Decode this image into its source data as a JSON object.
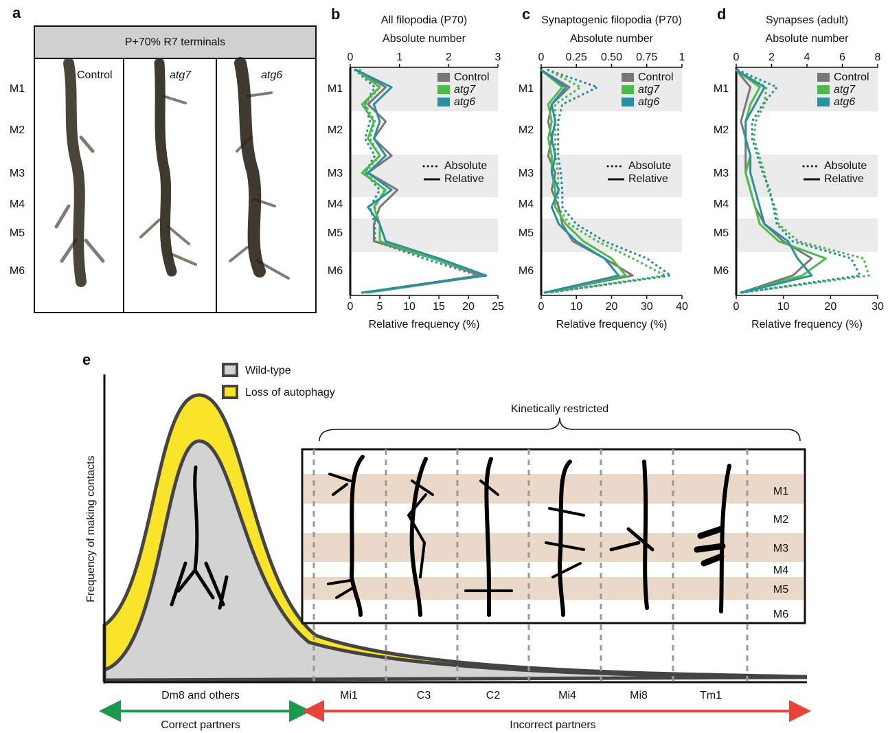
{
  "panel_a": {
    "letter": "a",
    "header": "P+70% R7 terminals",
    "columns": [
      "Control",
      "atg7",
      "atg6"
    ],
    "layers": [
      "M1",
      "M2",
      "M3",
      "M4",
      "M5",
      "M6"
    ]
  },
  "chart_data": [
    {
      "type": "line",
      "letter": "b",
      "title": "All filopodia (P70)",
      "x2_label": "Absolute number",
      "xlabel": "Relative frequency (%)",
      "layers": [
        "M1",
        "M2",
        "M3",
        "M4",
        "M5",
        "M6"
      ],
      "xlim": [
        0,
        25
      ],
      "xticks": [
        0,
        5,
        10,
        15,
        20,
        25
      ],
      "x2lim": [
        0,
        3
      ],
      "x2ticks": [
        0,
        1,
        2,
        3
      ],
      "legend": "upper right",
      "line_styles": {
        "absolute": "Absolute",
        "relative": "Relative"
      },
      "categories": [
        null,
        null,
        null,
        null,
        null,
        null,
        null,
        null,
        null,
        null,
        null,
        null,
        null,
        null
      ],
      "series": [
        {
          "name": "Control",
          "color": "#777777",
          "relative": [
            1,
            6,
            3,
            6,
            4,
            7,
            3,
            8,
            5,
            4,
            4,
            14,
            22,
            2
          ]
        },
        {
          "name": "atg7",
          "color": "#4cbb4c",
          "relative": [
            1,
            5,
            2,
            4,
            3,
            5,
            2,
            6,
            4,
            5,
            5,
            14,
            23,
            3
          ],
          "absolute": [
            0.2,
            0.6,
            0.3,
            0.5,
            0.4,
            0.6,
            0.3,
            0.7,
            0.5,
            0.6,
            0.6,
            1.7,
            2.7,
            0.3
          ]
        },
        {
          "name": "atg6",
          "color": "#2a8fa0",
          "relative": [
            1,
            7,
            4,
            5,
            4,
            6,
            3,
            7,
            3,
            5,
            6,
            15,
            23,
            2
          ],
          "absolute": [
            0.1,
            0.5,
            0.3,
            0.4,
            0.3,
            0.5,
            0.3,
            0.6,
            0.4,
            0.5,
            0.5,
            1.5,
            2.6,
            0.3
          ]
        }
      ]
    },
    {
      "type": "line",
      "letter": "c",
      "title": "Synaptogenic filopodia (P70)",
      "x2_label": "Absolute number",
      "xlabel": "Relative frequency (%)",
      "layers": [
        "M1",
        "M2",
        "M3",
        "M4",
        "M5",
        "M6"
      ],
      "xlim": [
        0,
        40
      ],
      "xticks": [
        0,
        10,
        20,
        30,
        40
      ],
      "x2lim": [
        0,
        1
      ],
      "x2ticks": [
        0,
        0.25,
        {
          "value": 0.5,
          "label": "0.50"
        },
        0.75,
        1
      ],
      "legend": "upper right",
      "line_styles": {
        "absolute": "Absolute",
        "relative": "Relative"
      },
      "categories": [
        null,
        null,
        null,
        null,
        null,
        null,
        null,
        null,
        null,
        null,
        null,
        null,
        null,
        null
      ],
      "series": [
        {
          "name": "Control",
          "color": "#777777",
          "relative": [
            0,
            8,
            3,
            2,
            3,
            2,
            4,
            3,
            5,
            6,
            9,
            18,
            26,
            1
          ]
        },
        {
          "name": "atg7",
          "color": "#4cbb4c",
          "relative": [
            0,
            6,
            2,
            3,
            2,
            3,
            3,
            4,
            4,
            7,
            12,
            20,
            24,
            1
          ],
          "absolute": [
            0.05,
            0.28,
            0.1,
            0.1,
            0.1,
            0.1,
            0.12,
            0.12,
            0.12,
            0.2,
            0.4,
            0.65,
            0.88,
            0.05
          ]
        },
        {
          "name": "atg6",
          "color": "#2a8fa0",
          "relative": [
            0,
            7,
            3,
            4,
            3,
            4,
            3,
            5,
            3,
            5,
            10,
            18,
            22,
            1
          ],
          "absolute": [
            0.05,
            0.4,
            0.15,
            0.12,
            0.12,
            0.12,
            0.14,
            0.15,
            0.15,
            0.25,
            0.45,
            0.75,
            0.92,
            0.05
          ]
        }
      ]
    },
    {
      "type": "line",
      "letter": "d",
      "title": "Synapses (adult)",
      "x2_label": "Absolute number",
      "xlabel": "Relative frequency (%)",
      "layers": [
        "M1",
        "M2",
        "M3",
        "M4",
        "M5",
        "M6"
      ],
      "xlim": [
        0,
        30
      ],
      "xticks": [
        0,
        10,
        20,
        30
      ],
      "x2lim": [
        0,
        8
      ],
      "x2ticks": [
        0,
        2,
        4,
        6,
        8
      ],
      "legend": "upper right",
      "line_styles": {
        "absolute": "Absolute",
        "relative": "Relative"
      },
      "categories": [
        null,
        null,
        null,
        null,
        null,
        null,
        null,
        null,
        null,
        null,
        null,
        null,
        null,
        null
      ],
      "series": [
        {
          "name": "Control",
          "color": "#777777",
          "relative": [
            0,
            3,
            2,
            1,
            2,
            2,
            2,
            3,
            4,
            6,
            10,
            16,
            12,
            1
          ]
        },
        {
          "name": "atg7",
          "color": "#4cbb4c",
          "relative": [
            0,
            5,
            3,
            2,
            2,
            3,
            2,
            3,
            4,
            5,
            9,
            19,
            14,
            1
          ],
          "absolute": [
            0.1,
            1.7,
            1.6,
            1.1,
            1.0,
            1.3,
            1.6,
            1.8,
            2.2,
            2.4,
            3.5,
            7.2,
            7.5,
            0.3
          ]
        },
        {
          "name": "atg6",
          "color": "#2a8fa0",
          "relative": [
            0,
            6,
            4,
            2,
            2,
            3,
            3,
            4,
            5,
            6,
            11,
            13,
            16,
            1
          ],
          "absolute": [
            0.1,
            2.3,
            1.5,
            0.9,
            0.9,
            1.2,
            1.5,
            1.9,
            2.1,
            2.3,
            3.2,
            6.5,
            7.0,
            0.3
          ]
        }
      ]
    }
  ],
  "panel_e": {
    "letter": "e",
    "ylabel": "Frequency of making contacts",
    "legend": [
      "Wild-type",
      "Loss of autophagy"
    ],
    "brace_label": "Kinetically restricted",
    "layers": [
      "M1",
      "M2",
      "M3",
      "M4",
      "M5",
      "M6"
    ],
    "neurons": [
      "Dm8 and others",
      "Mi1",
      "C3",
      "C2",
      "Mi4",
      "Mi8",
      "Tm1"
    ],
    "correct": "Correct partners",
    "incorrect": "Incorrect partners"
  }
}
